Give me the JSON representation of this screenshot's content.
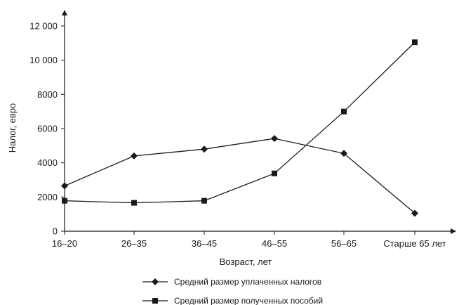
{
  "chart_data": {
    "type": "line",
    "title": "",
    "xlabel": "Возраст, лет",
    "ylabel": "Налог, евро",
    "categories": [
      "16–20",
      "26–35",
      "36–45",
      "46–55",
      "56–65",
      "Старше 65 лет"
    ],
    "yticks": [
      "0",
      "2000",
      "4000",
      "6000",
      "8000",
      "10 000",
      "12 000"
    ],
    "ylim": [
      0,
      13000
    ],
    "grid": false,
    "legend_position": "bottom-center",
    "series": [
      {
        "name": "Средний размер уплаченных налогов",
        "marker": "diamond",
        "values": [
          2650,
          4400,
          4800,
          5420,
          4550,
          1050
        ]
      },
      {
        "name": "Средний размер полученных пособий",
        "marker": "square",
        "values": [
          1780,
          1660,
          1780,
          3380,
          7000,
          11050
        ]
      }
    ],
    "line_color": "#1a1a1a"
  }
}
